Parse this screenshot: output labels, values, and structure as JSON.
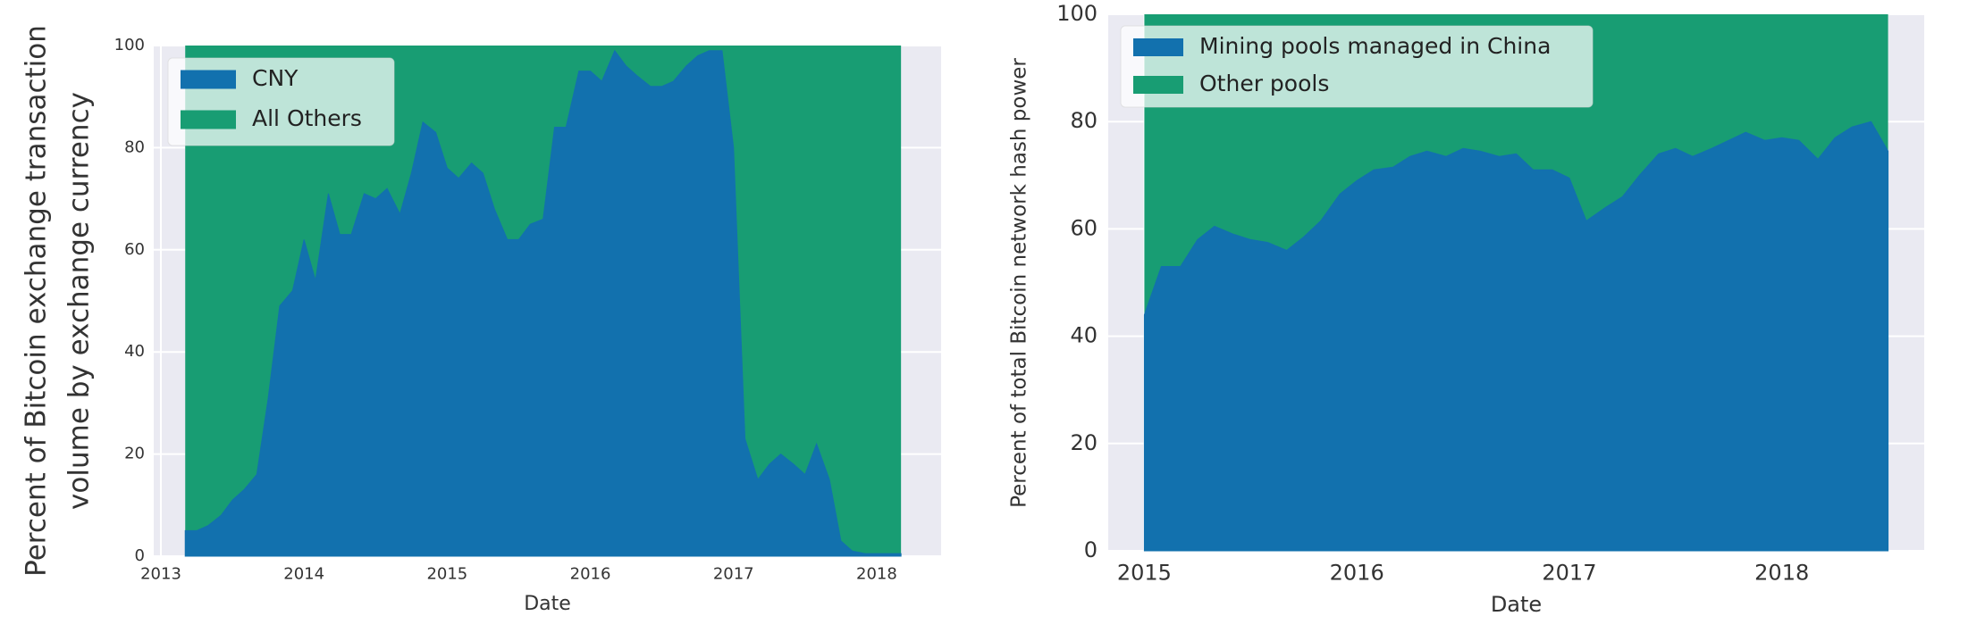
{
  "chart_data": [
    {
      "type": "area",
      "stacked": true,
      "percent_stacked": true,
      "xlabel": "Date",
      "ylabel": [
        "Percent of Bitcoin exchange transaction",
        "volume by exchange currency"
      ],
      "xlim": [
        2012.95,
        2018.45
      ],
      "ylim": [
        0,
        100
      ],
      "xticks": [
        2013,
        2014,
        2015,
        2016,
        2017,
        2018
      ],
      "xtick_labels": [
        "2013",
        "2014",
        "2015",
        "2016",
        "2017",
        "2018"
      ],
      "yticks": [
        0,
        20,
        40,
        60,
        80,
        100
      ],
      "ytick_labels": [
        "0",
        "20",
        "40",
        "60",
        "80",
        "100"
      ],
      "grid": true,
      "legend_position": "top-left",
      "colors": {
        "background": "#eaeaf2",
        "grid": "#ffffff",
        "series_1": "#1271ae",
        "series_2": "#189d73"
      },
      "series": [
        {
          "name": "CNY",
          "color": "#1271ae"
        },
        {
          "name": "All Others",
          "color": "#189d73"
        }
      ],
      "x": [
        2013.17,
        2013.25,
        2013.33,
        2013.42,
        2013.5,
        2013.58,
        2013.67,
        2013.75,
        2013.83,
        2013.92,
        2014.0,
        2014.08,
        2014.17,
        2014.25,
        2014.33,
        2014.42,
        2014.5,
        2014.58,
        2014.67,
        2014.75,
        2014.83,
        2014.92,
        2015.0,
        2015.08,
        2015.17,
        2015.25,
        2015.33,
        2015.42,
        2015.5,
        2015.58,
        2015.67,
        2015.75,
        2015.83,
        2015.92,
        2016.0,
        2016.08,
        2016.17,
        2016.25,
        2016.33,
        2016.42,
        2016.5,
        2016.58,
        2016.67,
        2016.75,
        2016.83,
        2016.92,
        2017.0,
        2017.08,
        2017.17,
        2017.25,
        2017.33,
        2017.42,
        2017.5,
        2017.58,
        2017.67,
        2017.75,
        2017.83,
        2017.92,
        2018.0,
        2018.08,
        2018.17
      ],
      "values": [
        5,
        5,
        6,
        8,
        11,
        13,
        16,
        31,
        49,
        52,
        62,
        54,
        71,
        63,
        63,
        71,
        70,
        72,
        67,
        75,
        85,
        83,
        76,
        74,
        77,
        75,
        68,
        62,
        62,
        65,
        66,
        84,
        84,
        95,
        95,
        93,
        99,
        96,
        94,
        92,
        92,
        93,
        96,
        98,
        99,
        99,
        80,
        23,
        15,
        18,
        20,
        18,
        16,
        22,
        15,
        3,
        1,
        0.5,
        0.5,
        0.5,
        0.5
      ]
    },
    {
      "type": "area",
      "stacked": true,
      "percent_stacked": true,
      "xlabel": "Date",
      "ylabel": "Percent of total Bitcoin network hash power",
      "xlim": [
        2014.83,
        2018.67
      ],
      "ylim": [
        0,
        100
      ],
      "xticks": [
        2015,
        2016,
        2017,
        2018
      ],
      "xtick_labels": [
        "2015",
        "2016",
        "2017",
        "2018"
      ],
      "yticks": [
        0,
        20,
        40,
        60,
        80,
        100
      ],
      "ytick_labels": [
        "0",
        "20",
        "40",
        "60",
        "80",
        "100"
      ],
      "grid": true,
      "legend_position": "top-left",
      "colors": {
        "background": "#eaeaf2",
        "grid": "#ffffff",
        "series_1": "#1271ae",
        "series_2": "#189d73"
      },
      "series": [
        {
          "name": "Mining pools managed in China",
          "color": "#1271ae"
        },
        {
          "name": "Other pools",
          "color": "#189d73"
        }
      ],
      "x": [
        2015.0,
        2015.08,
        2015.17,
        2015.25,
        2015.33,
        2015.42,
        2015.5,
        2015.58,
        2015.67,
        2015.75,
        2015.83,
        2015.92,
        2016.0,
        2016.08,
        2016.17,
        2016.25,
        2016.33,
        2016.42,
        2016.5,
        2016.58,
        2016.67,
        2016.75,
        2016.83,
        2016.92,
        2017.0,
        2017.08,
        2017.17,
        2017.25,
        2017.33,
        2017.42,
        2017.5,
        2017.58,
        2017.67,
        2017.75,
        2017.83,
        2017.92,
        2018.0,
        2018.08,
        2018.17,
        2018.25,
        2018.33,
        2018.42,
        2018.5
      ],
      "values": [
        44,
        53,
        53,
        58,
        60.5,
        59,
        58,
        57.5,
        56,
        58.5,
        61.5,
        66.5,
        69,
        71,
        71.5,
        73.5,
        74.5,
        73.5,
        75,
        74.5,
        73.5,
        74,
        71,
        71,
        69.5,
        61.5,
        64,
        66,
        70,
        74,
        75,
        73.5,
        75,
        76.5,
        78,
        76.5,
        77,
        76.5,
        73,
        77,
        79,
        80,
        74.5
      ]
    }
  ]
}
